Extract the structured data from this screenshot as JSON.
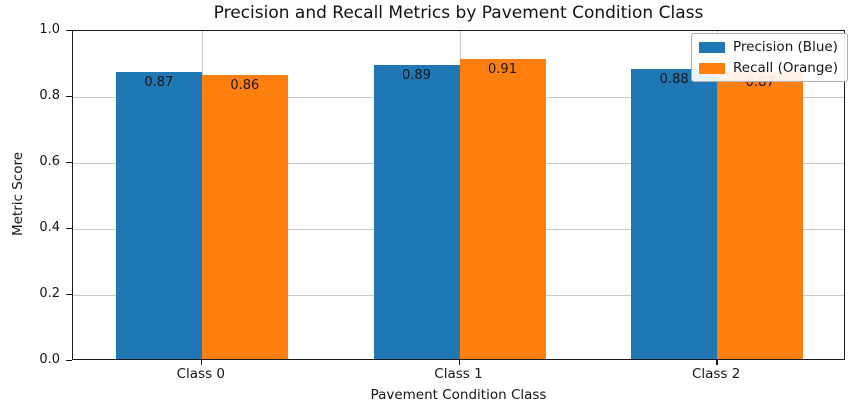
{
  "chart_data": {
    "type": "bar",
    "title": "Precision and Recall Metrics by Pavement Condition Class",
    "xlabel": "Pavement Condition Class",
    "ylabel": "Metric Score",
    "categories": [
      "Class 0",
      "Class 1",
      "Class 2"
    ],
    "series": [
      {
        "name": "Precision (Blue)",
        "color": "#1f77b4",
        "values": [
          0.87,
          0.89,
          0.88
        ]
      },
      {
        "name": "Recall (Orange)",
        "color": "#ff7f0e",
        "values": [
          0.86,
          0.91,
          0.87
        ]
      }
    ],
    "ylim": [
      0.0,
      1.0
    ],
    "yticks": [
      0.0,
      0.2,
      0.4,
      0.6,
      0.8,
      1.0
    ],
    "ytick_labels": [
      "0.0",
      "0.2",
      "0.4",
      "0.6",
      "0.8",
      "1.0"
    ],
    "grid": true,
    "grid_color": "#c8c8c8",
    "legend_position": "upper right",
    "value_labels": [
      "0.87",
      "0.89",
      "0.88",
      "0.86",
      "0.91",
      "0.87"
    ]
  }
}
